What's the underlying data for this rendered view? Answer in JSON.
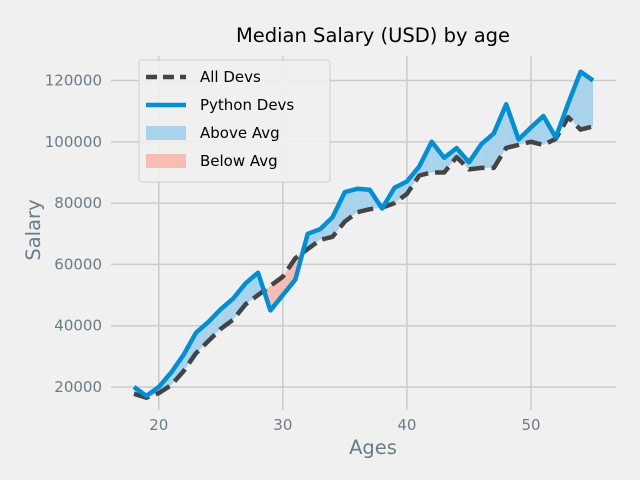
{
  "chart_data": {
    "type": "line",
    "title": "Median Salary (USD) by age",
    "xlabel": "Ages",
    "ylabel": "Salary",
    "xlim": [
      16.15,
      56.85
    ],
    "ylim": [
      12500,
      128000
    ],
    "xticks": [
      20,
      30,
      40,
      50
    ],
    "yticks": [
      20000,
      40000,
      60000,
      80000,
      100000,
      120000
    ],
    "grid": true,
    "legend_position": "upper-left",
    "colors": {
      "background": "#f0f0f0",
      "grid": "#cbcbcb",
      "all_devs": "#444444",
      "python_devs": "#008fd5",
      "above_fill": "#a9d2eb",
      "below_fill": "#f7bcb2",
      "axis_text": "#6b7c86"
    },
    "x": [
      18,
      19,
      20,
      21,
      22,
      23,
      24,
      25,
      26,
      27,
      28,
      29,
      30,
      31,
      32,
      33,
      34,
      35,
      36,
      37,
      38,
      39,
      40,
      41,
      42,
      43,
      44,
      45,
      46,
      47,
      48,
      49,
      50,
      51,
      52,
      53,
      54,
      55
    ],
    "series": [
      {
        "name": "All Devs",
        "style": "dashed",
        "values": [
          17784,
          16500,
          18012,
          20628,
          25206,
          31046,
          35000,
          39000,
          42000,
          47000,
          50000,
          53000,
          56000,
          62000,
          65000,
          68000,
          69000,
          74000,
          77000,
          78000,
          78500,
          80000,
          83000,
          89000,
          90000,
          90000,
          95000,
          91000,
          91500,
          91500,
          98000,
          99000,
          100000,
          99000,
          101000,
          108000,
          104000,
          105000
        ]
      },
      {
        "name": "Python Devs",
        "style": "solid",
        "values": [
          20046,
          17100,
          20000,
          24744,
          30500,
          37732,
          41247,
          45372,
          48876,
          53850,
          57287,
          45000,
          50000,
          55000,
          70000,
          71496,
          75370,
          83640,
          84666,
          84392,
          78254,
          85000,
          87038,
          91991,
          100000,
          94796,
          97962,
          93302,
          99240,
          102736,
          112285,
          100771,
          104708,
          108423,
          101407,
          112542,
          122870,
          120000
        ]
      }
    ],
    "fills": [
      {
        "name": "Above Avg",
        "between": [
          "Python Devs",
          "All Devs"
        ],
        "where": "python > all"
      },
      {
        "name": "Below Avg",
        "between": [
          "Python Devs",
          "All Devs"
        ],
        "where": "python <= all"
      }
    ],
    "legend": [
      "All Devs",
      "Python Devs",
      "Above Avg",
      "Below Avg"
    ]
  }
}
